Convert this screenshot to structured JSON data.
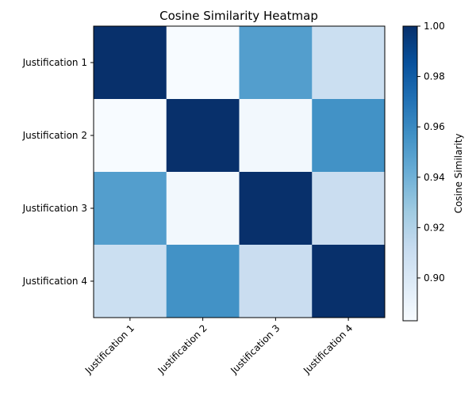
{
  "chart_data": {
    "type": "heatmap",
    "title": "Cosine Similarity Heatmap",
    "row_labels": [
      "Justification 1",
      "Justification 2",
      "Justification 3",
      "Justification 4"
    ],
    "col_labels": [
      "Justification 1",
      "Justification 2",
      "Justification 3",
      "Justification 4"
    ],
    "values": [
      [
        1.0,
        0.883,
        0.95,
        0.909
      ],
      [
        0.883,
        1.0,
        0.886,
        0.956
      ],
      [
        0.95,
        0.886,
        1.0,
        0.91
      ],
      [
        0.909,
        0.956,
        0.91,
        1.0
      ]
    ],
    "colormap": "Blues",
    "colorbar": {
      "label": "Cosine Similarity",
      "range": [
        0.883,
        1.0
      ],
      "ticks": [
        "0.90",
        "0.92",
        "0.94",
        "0.96",
        "0.98",
        "1.00"
      ]
    },
    "grid": false
  }
}
